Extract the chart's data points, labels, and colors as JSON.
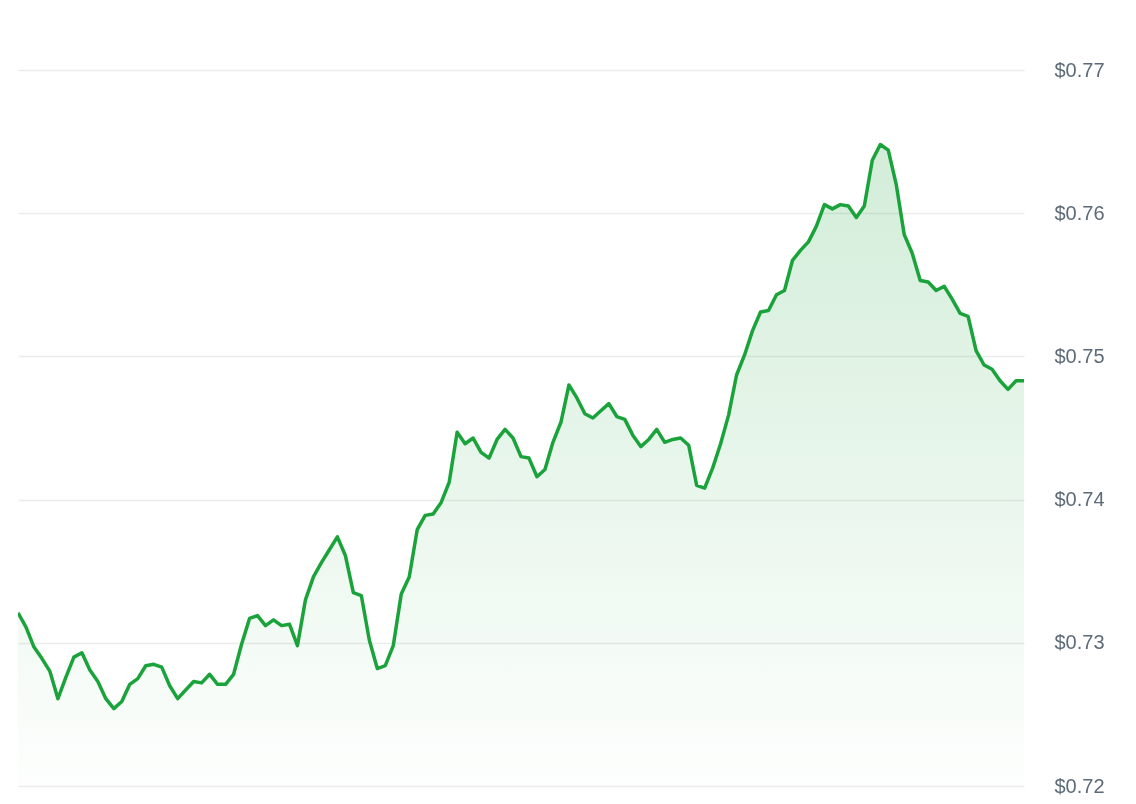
{
  "chart_data": {
    "type": "area",
    "categories": [
      null,
      null,
      null,
      null,
      null,
      null,
      null,
      null,
      null,
      null,
      null,
      null,
      null,
      null,
      null,
      null,
      null,
      null,
      null,
      null,
      null,
      null,
      null,
      null,
      null,
      null,
      null,
      null,
      null,
      null,
      null,
      null,
      null,
      null,
      null,
      null,
      null,
      null,
      null,
      null,
      null,
      null,
      null,
      null,
      null,
      null,
      null,
      null,
      null,
      null,
      null,
      null,
      null,
      null,
      null,
      null,
      null,
      null,
      null,
      null,
      null,
      null,
      null,
      null,
      null,
      null,
      null,
      null,
      null,
      null,
      null,
      null,
      null,
      null,
      null,
      null,
      null,
      null,
      null,
      null,
      null,
      null,
      null,
      null,
      null,
      null,
      null,
      null,
      null,
      null,
      null,
      null,
      null,
      null,
      null,
      null,
      null,
      null,
      null,
      null,
      null,
      null,
      null,
      null,
      null,
      null,
      null,
      null,
      null,
      null,
      null,
      null,
      null,
      null,
      null,
      null,
      null,
      null,
      null,
      null,
      null,
      null,
      null,
      null,
      null,
      null,
      null
    ],
    "series": [
      {
        "color": "#1aa33a",
        "values": [
          0.7321,
          0.7311,
          0.7297,
          0.7289,
          0.728,
          0.7261,
          0.7276,
          0.729,
          0.7293,
          0.7281,
          0.7273,
          0.7261,
          0.7254,
          0.7259,
          0.7271,
          0.7275,
          0.7284,
          0.7285,
          0.7283,
          0.727,
          0.7261,
          0.7267,
          0.7273,
          0.7272,
          0.7278,
          0.7271,
          0.7271,
          0.7278,
          0.7299,
          0.7317,
          0.7319,
          0.7312,
          0.7316,
          0.7312,
          0.7313,
          0.7298,
          0.733,
          0.7346,
          0.7356,
          0.7365,
          0.7374,
          0.7361,
          0.7335,
          0.7333,
          0.7302,
          0.7282,
          0.7284,
          0.7298,
          0.7334,
          0.7346,
          0.7379,
          0.7389,
          0.739,
          0.7398,
          0.7412,
          0.7447,
          0.7439,
          0.7443,
          0.7433,
          0.7429,
          0.7442,
          0.7449,
          0.7443,
          0.743,
          0.7429,
          0.7416,
          0.7421,
          0.744,
          0.7454,
          0.748,
          0.7471,
          0.746,
          0.7457,
          0.7462,
          0.7467,
          0.7458,
          0.7456,
          0.7445,
          0.7437,
          0.7442,
          0.7449,
          0.744,
          0.7442,
          0.7443,
          0.7438,
          0.741,
          0.7408,
          0.7422,
          0.7439,
          0.7459,
          0.7487,
          0.7501,
          0.7518,
          0.7531,
          0.7532,
          0.7543,
          0.7546,
          0.7567,
          0.7574,
          0.758,
          0.7591,
          0.7606,
          0.7603,
          0.7606,
          0.7605,
          0.7597,
          0.7605,
          0.7637,
          0.7648,
          0.7644,
          0.762,
          0.7585,
          0.7572,
          0.7553,
          0.7552,
          0.7546,
          0.7549,
          0.754,
          0.753,
          0.7528,
          0.7504,
          0.7494,
          0.7491,
          0.7483,
          0.7477,
          0.7483,
          0.7483
        ]
      }
    ],
    "ylim": [
      0.72,
      0.77
    ],
    "yticks": [
      {
        "value": 0.72,
        "label": "$0.72"
      },
      {
        "value": 0.73,
        "label": "$0.73"
      },
      {
        "value": 0.74,
        "label": "$0.74"
      },
      {
        "value": 0.75,
        "label": "$0.75"
      },
      {
        "value": 0.76,
        "label": "$0.76"
      },
      {
        "value": 0.77,
        "label": "$0.77"
      }
    ],
    "grid": "y",
    "tick_labels": "y"
  }
}
